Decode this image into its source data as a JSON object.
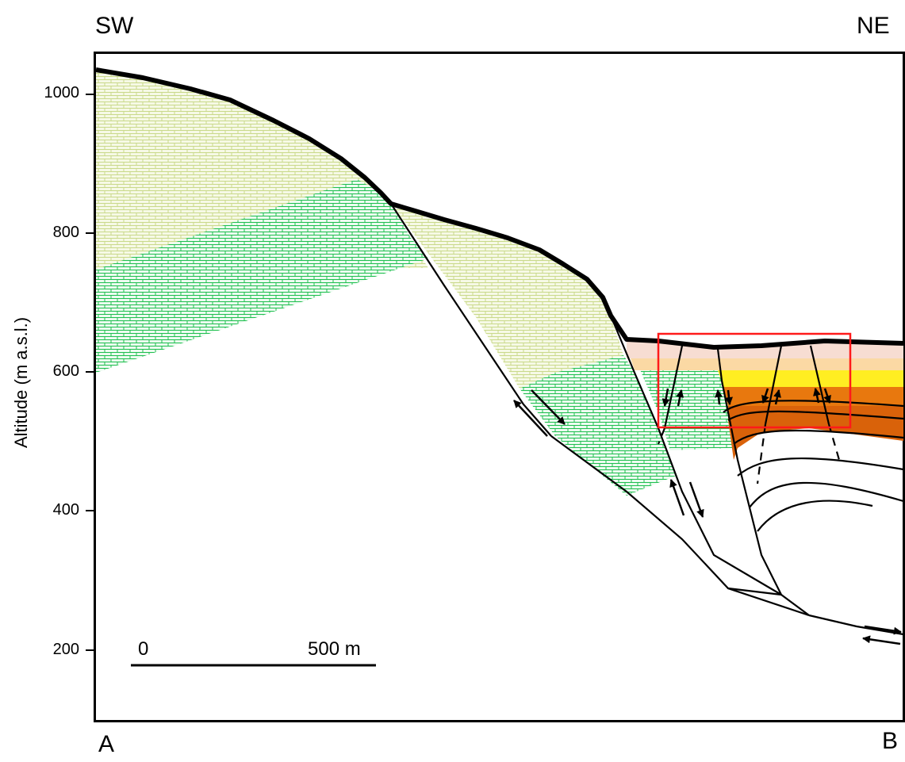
{
  "compass": {
    "left": "SW",
    "right": "NE"
  },
  "points": {
    "start": "A",
    "end": "B"
  },
  "y_axis": {
    "label": "Altitude (m a.s.l.)",
    "ticks": [
      "1000",
      "800",
      "600",
      "400",
      "200"
    ]
  },
  "scale_bar": {
    "zero": "0",
    "length_label": "500 m"
  },
  "colors": {
    "limestone_light": "#d7e3a0",
    "limestone_green": "#22c55e",
    "layer_pink": "#f7ddd2",
    "layer_peach": "#fbd9a4",
    "layer_yellow": "#ffee22",
    "layer_orange": "#e8780e",
    "layer_brown": "#d9620a",
    "highlight_box": "#ff1a1a"
  }
}
